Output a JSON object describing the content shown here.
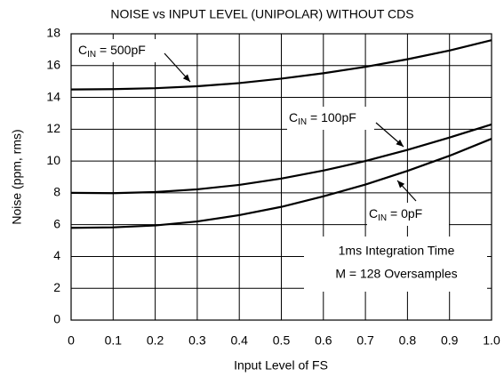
{
  "chart_data": {
    "type": "line",
    "title": "NOISE vs INPUT LEVEL (UNIPOLAR) WITHOUT CDS",
    "x_label": "Input Level of FS",
    "y_label": "Noise (ppm, rms)",
    "x": [
      0,
      0.1,
      0.2,
      0.3,
      0.4,
      0.5,
      0.6,
      0.7,
      0.8,
      0.9,
      1.0
    ],
    "series": [
      {
        "name": [
          "C",
          "IN",
          " = 500pF"
        ],
        "color": "#000000",
        "values": [
          14.5,
          14.52,
          14.58,
          14.7,
          14.9,
          15.18,
          15.52,
          15.92,
          16.4,
          16.95,
          17.6
        ]
      },
      {
        "name": [
          "C",
          "IN",
          " = 100pF"
        ],
        "color": "#000000",
        "values": [
          8.0,
          7.98,
          8.05,
          8.22,
          8.5,
          8.9,
          9.4,
          10.0,
          10.7,
          11.48,
          12.3
        ]
      },
      {
        "name": [
          "C",
          "IN",
          " = 0pF"
        ],
        "color": "#000000",
        "values": [
          5.8,
          5.83,
          5.95,
          6.2,
          6.6,
          7.12,
          7.78,
          8.52,
          9.38,
          10.33,
          11.4
        ]
      }
    ],
    "notes": [
      "1ms Integration Time",
      "M = 128 Oversamples"
    ],
    "xlim": [
      0,
      1.0
    ],
    "xticks": [
      0,
      0.1,
      0.2,
      0.3,
      0.4,
      0.5,
      0.6,
      0.7,
      0.8,
      0.9,
      {
        "value": 1.0,
        "label": "1.0"
      }
    ],
    "ylim": [
      0,
      18
    ],
    "yticks": [
      0,
      2,
      4,
      6,
      8,
      10,
      12,
      14,
      16,
      18
    ],
    "grid": true
  }
}
